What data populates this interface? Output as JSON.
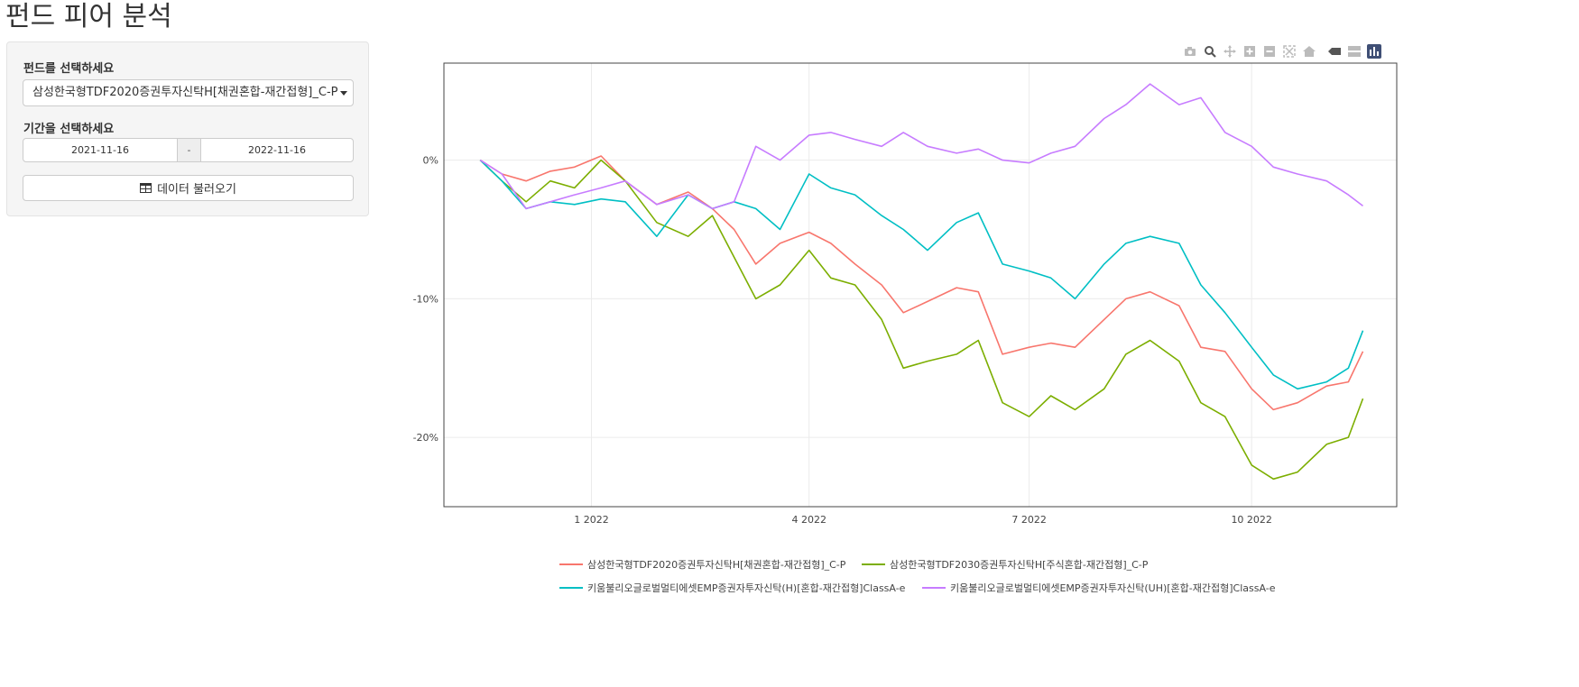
{
  "page": {
    "title": "펀드 피어 분석"
  },
  "sidebar": {
    "fund_label": "펀드를 선택하세요",
    "fund_selected": "삼성한국형TDF2020증권투자신탁H[채권혼합-재간접형]_C-P",
    "period_label": "기간을 선택하세요",
    "date_start": "2021-11-16",
    "date_sep": "-",
    "date_end": "2022-11-16",
    "load_button": "데이터 불러오기"
  },
  "modebar": {
    "icons": [
      "camera-icon",
      "zoom-icon",
      "pan-icon",
      "zoom-in-icon",
      "zoom-out-icon",
      "autoscale-icon",
      "home-icon",
      "spike-closest-icon",
      "spike-compare-icon",
      "plotly-logo-icon"
    ]
  },
  "chart_data": {
    "type": "line",
    "x_range": [
      "2021-11-01",
      "2022-11-30"
    ],
    "ylim": [
      -25,
      7
    ],
    "y_tick_values": [
      0,
      -10,
      -20
    ],
    "y_tick_labels": [
      "0%",
      "-10%",
      "-20%"
    ],
    "x_tick_values": [
      "2022-01-01",
      "2022-04-01",
      "2022-07-01",
      "2022-10-01"
    ],
    "x_tick_labels": [
      "1 2022",
      "4 2022",
      "7 2022",
      "10 2022"
    ],
    "grid": true,
    "legend_position": "bottom",
    "series": [
      {
        "name": "삼성한국형TDF2020증권투자신탁H[채권혼합-재간접형]_C-P",
        "color": "#F8766D",
        "x": [
          "2021-11-16",
          "2021-11-25",
          "2021-12-05",
          "2021-12-15",
          "2021-12-25",
          "2022-01-05",
          "2022-01-15",
          "2022-01-28",
          "2022-02-10",
          "2022-02-20",
          "2022-03-01",
          "2022-03-10",
          "2022-03-20",
          "2022-04-01",
          "2022-04-10",
          "2022-04-20",
          "2022-05-01",
          "2022-05-10",
          "2022-05-20",
          "2022-06-01",
          "2022-06-10",
          "2022-06-20",
          "2022-07-01",
          "2022-07-10",
          "2022-07-20",
          "2022-08-01",
          "2022-08-10",
          "2022-08-20",
          "2022-09-01",
          "2022-09-10",
          "2022-09-20",
          "2022-10-01",
          "2022-10-10",
          "2022-10-20",
          "2022-11-01",
          "2022-11-10",
          "2022-11-16"
        ],
        "y": [
          0,
          -1.0,
          -1.5,
          -0.8,
          -0.5,
          0.3,
          -1.5,
          -3.2,
          -2.3,
          -3.5,
          -5.0,
          -7.5,
          -6.0,
          -5.2,
          -6.0,
          -7.5,
          -9.0,
          -11.0,
          -10.2,
          -9.2,
          -9.5,
          -14.0,
          -13.5,
          -13.2,
          -13.5,
          -11.5,
          -10.0,
          -9.5,
          -10.5,
          -13.5,
          -13.8,
          -16.5,
          -18.0,
          -17.5,
          -16.3,
          -16.0,
          -13.8
        ]
      },
      {
        "name": "삼성한국형TDF2030증권투자신탁H[주식혼합-재간접형]_C-P",
        "color": "#7CAE00",
        "x": [
          "2021-11-16",
          "2021-11-25",
          "2021-12-05",
          "2021-12-15",
          "2021-12-25",
          "2022-01-05",
          "2022-01-15",
          "2022-01-28",
          "2022-02-10",
          "2022-02-20",
          "2022-03-01",
          "2022-03-10",
          "2022-03-20",
          "2022-04-01",
          "2022-04-10",
          "2022-04-20",
          "2022-05-01",
          "2022-05-10",
          "2022-05-20",
          "2022-06-01",
          "2022-06-10",
          "2022-06-20",
          "2022-07-01",
          "2022-07-10",
          "2022-07-20",
          "2022-08-01",
          "2022-08-10",
          "2022-08-20",
          "2022-09-01",
          "2022-09-10",
          "2022-09-20",
          "2022-10-01",
          "2022-10-10",
          "2022-10-20",
          "2022-11-01",
          "2022-11-10",
          "2022-11-16"
        ],
        "y": [
          0,
          -1.5,
          -3.0,
          -1.5,
          -2.0,
          0,
          -1.5,
          -4.5,
          -5.5,
          -4.0,
          -7.0,
          -10.0,
          -9.0,
          -6.5,
          -8.5,
          -9.0,
          -11.5,
          -15.0,
          -14.5,
          -14.0,
          -13.0,
          -17.5,
          -18.5,
          -17.0,
          -18.0,
          -16.5,
          -14.0,
          -13.0,
          -14.5,
          -17.5,
          -18.5,
          -22.0,
          -23.0,
          -22.5,
          -20.5,
          -20.0,
          -17.2
        ]
      },
      {
        "name": "키움불리오글로벌멀티에셋EMP증권자투자신탁(H)[혼합-재간접형]ClassA-e",
        "color": "#00BFC4",
        "x": [
          "2021-11-16",
          "2021-11-25",
          "2021-12-05",
          "2021-12-15",
          "2021-12-25",
          "2022-01-05",
          "2022-01-15",
          "2022-01-28",
          "2022-02-10",
          "2022-02-20",
          "2022-03-01",
          "2022-03-10",
          "2022-03-20",
          "2022-04-01",
          "2022-04-10",
          "2022-04-20",
          "2022-05-01",
          "2022-05-10",
          "2022-05-20",
          "2022-06-01",
          "2022-06-10",
          "2022-06-20",
          "2022-07-01",
          "2022-07-10",
          "2022-07-20",
          "2022-08-01",
          "2022-08-10",
          "2022-08-20",
          "2022-09-01",
          "2022-09-10",
          "2022-09-20",
          "2022-10-01",
          "2022-10-10",
          "2022-10-20",
          "2022-11-01",
          "2022-11-10",
          "2022-11-16"
        ],
        "y": [
          0,
          -1.5,
          -3.5,
          -3.0,
          -3.2,
          -2.8,
          -3.0,
          -5.5,
          -2.5,
          -3.5,
          -3.0,
          -3.5,
          -5.0,
          -1.0,
          -2.0,
          -2.5,
          -4.0,
          -5.0,
          -6.5,
          -4.5,
          -3.8,
          -7.5,
          -8.0,
          -8.5,
          -10.0,
          -7.5,
          -6.0,
          -5.5,
          -6.0,
          -9.0,
          -11.0,
          -13.5,
          -15.5,
          -16.5,
          -16.0,
          -15.0,
          -12.3
        ]
      },
      {
        "name": "키움불리오글로벌멀티에셋EMP증권자투자신탁(UH)[혼합-재간접형]ClassA-e",
        "color": "#C77CFF",
        "x": [
          "2021-11-16",
          "2021-11-25",
          "2021-12-05",
          "2021-12-15",
          "2021-12-25",
          "2022-01-05",
          "2022-01-15",
          "2022-01-28",
          "2022-02-10",
          "2022-02-20",
          "2022-03-01",
          "2022-03-10",
          "2022-03-20",
          "2022-04-01",
          "2022-04-10",
          "2022-04-20",
          "2022-05-01",
          "2022-05-10",
          "2022-05-20",
          "2022-06-01",
          "2022-06-10",
          "2022-06-20",
          "2022-07-01",
          "2022-07-10",
          "2022-07-20",
          "2022-08-01",
          "2022-08-10",
          "2022-08-20",
          "2022-09-01",
          "2022-09-10",
          "2022-09-20",
          "2022-10-01",
          "2022-10-10",
          "2022-10-20",
          "2022-11-01",
          "2022-11-10",
          "2022-11-16"
        ],
        "y": [
          0,
          -1.0,
          -3.5,
          -3.0,
          -2.5,
          -2.0,
          -1.5,
          -3.2,
          -2.5,
          -3.5,
          -3.0,
          1.0,
          0,
          1.8,
          2.0,
          1.5,
          1.0,
          2.0,
          1.0,
          0.5,
          0.8,
          0,
          -0.2,
          0.5,
          1.0,
          3.0,
          4.0,
          5.5,
          4.0,
          4.5,
          2.0,
          1.0,
          -0.5,
          -1.0,
          -1.5,
          -2.5,
          -3.3
        ]
      }
    ]
  }
}
